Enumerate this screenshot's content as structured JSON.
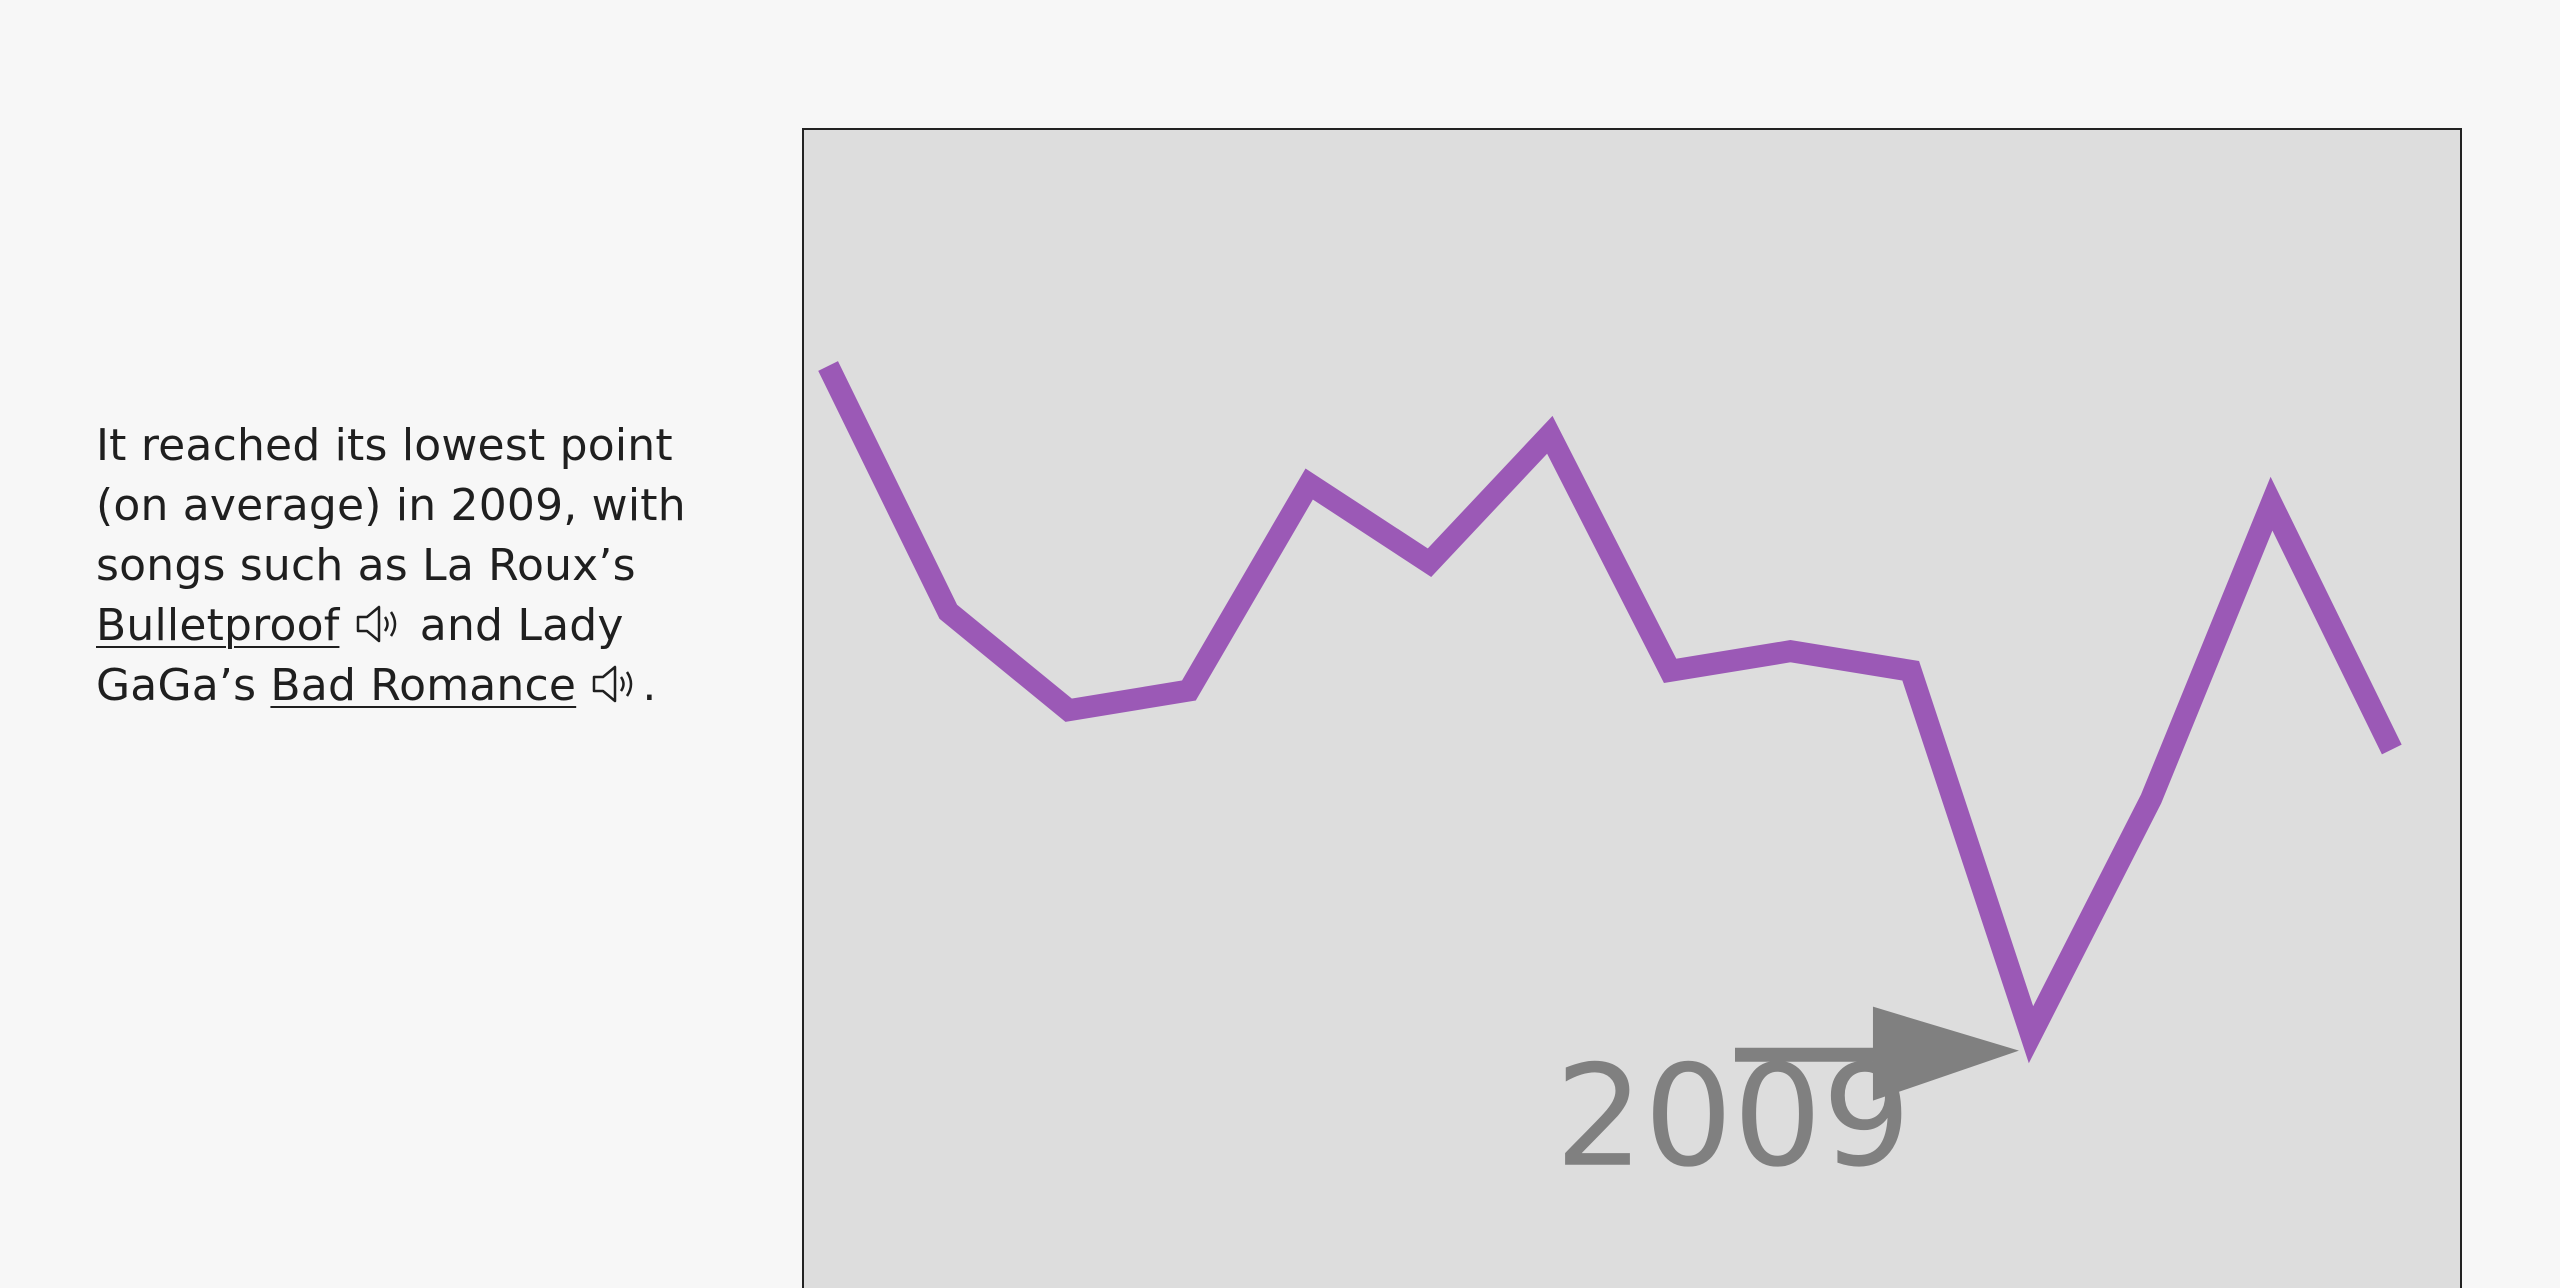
{
  "story": {
    "text_1": "It reached its lowest point (on average) in 2009, with songs such as La Roux’s ",
    "song_1": "Bulletproof",
    "text_2": " and Lady GaGa’s ",
    "song_2": "Bad Romance",
    "text_3": "."
  },
  "icons": {
    "audio": "speaker-icon"
  },
  "colors": {
    "line": "#9b59b6",
    "annotation": "#808080",
    "background": "#dddddd"
  },
  "chart_data": {
    "type": "line",
    "title": "",
    "xlabel": "",
    "ylabel": "",
    "x": [
      1999,
      2000,
      2001,
      2002,
      2003,
      2004,
      2005,
      2006,
      2007,
      2008,
      2009,
      2010,
      2011,
      2012
    ],
    "series": [
      {
        "values": [
          0.76,
          0.51,
          0.41,
          0.43,
          0.64,
          0.56,
          0.69,
          0.45,
          0.47,
          0.45,
          0.08,
          0.32,
          0.62,
          0.37
        ]
      }
    ],
    "xlim": [
      1998.8,
      2012.6
    ],
    "ylim": [
      -0.2,
      1.0
    ],
    "grid": false,
    "annotations": [
      {
        "text": "2009",
        "x": 2009,
        "y": 0.08
      }
    ]
  }
}
